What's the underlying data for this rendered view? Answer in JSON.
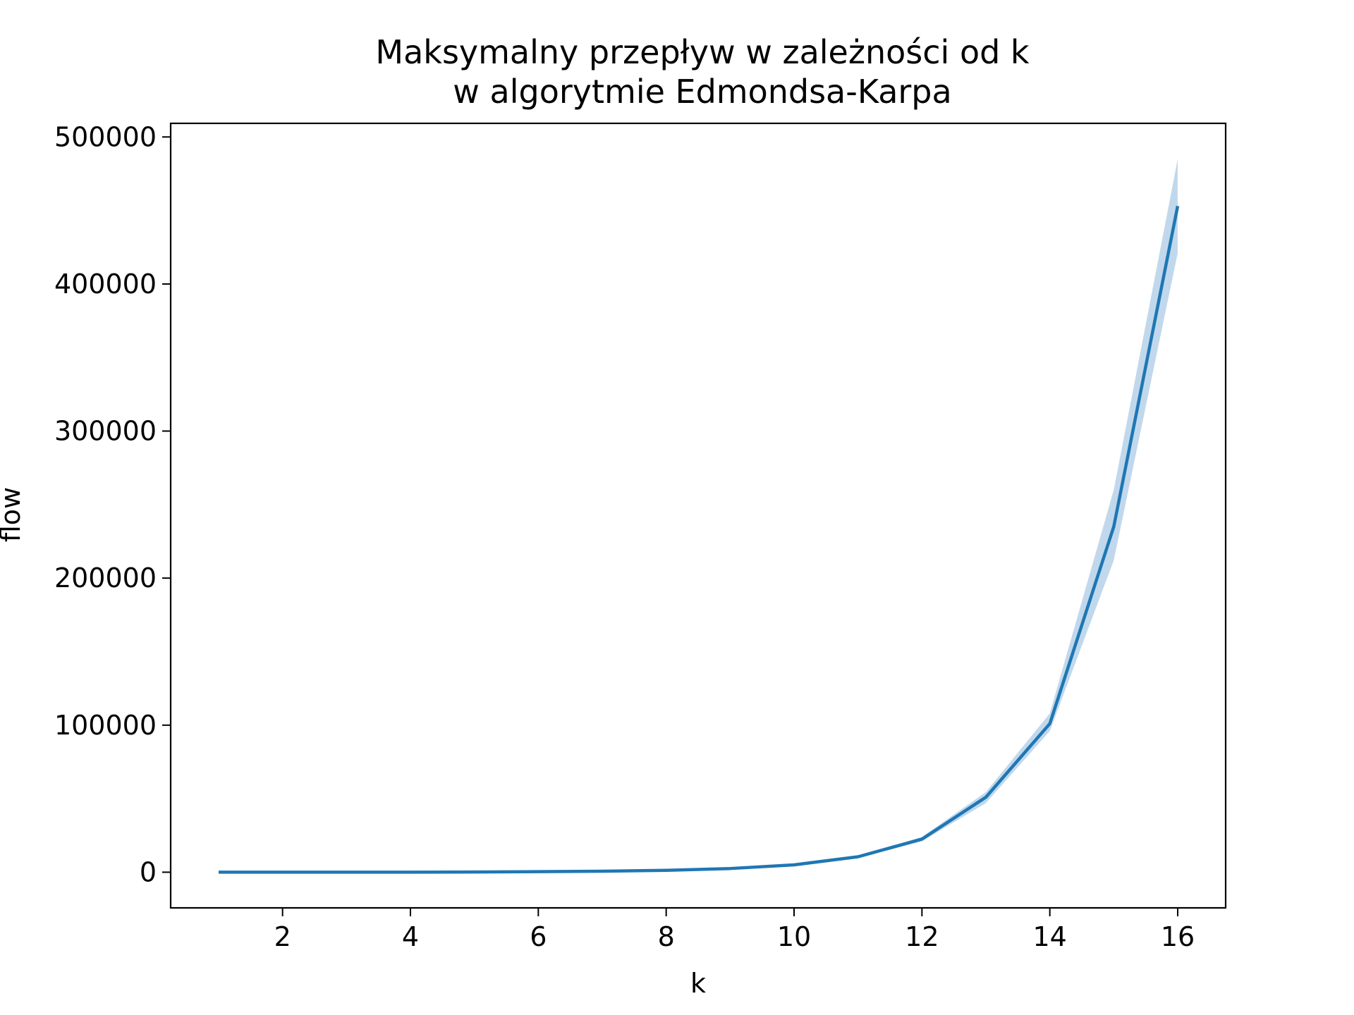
{
  "chart_data": {
    "type": "line",
    "title_lines": [
      "Maksymalny przepływ w zależności od k",
      "w algorytmie Edmondsa-Karpa"
    ],
    "xlabel": "k",
    "ylabel": "flow",
    "x": [
      1,
      2,
      3,
      4,
      5,
      6,
      7,
      8,
      9,
      10,
      11,
      12,
      13,
      14,
      15,
      16
    ],
    "series": [
      {
        "values": [
          1,
          3,
          10,
          35,
          120,
          350,
          700,
          1300,
          2500,
          5000,
          10500,
          22500,
          51000,
          101000,
          235000,
          453000
        ],
        "ci_lower": [
          0,
          2,
          8,
          30,
          100,
          300,
          600,
          1150,
          2250,
          4500,
          9700,
          21000,
          47000,
          96000,
          212000,
          421000
        ],
        "ci_upper": [
          2,
          4,
          12,
          40,
          140,
          400,
          800,
          1450,
          2750,
          5500,
          11300,
          24000,
          54500,
          108000,
          260000,
          485000
        ],
        "color": "#1f77b4",
        "band_color": "#a6c8e4"
      }
    ],
    "xlim": [
      0.25,
      16.75
    ],
    "ylim": [
      -24250,
      509250
    ],
    "xticks": [
      2,
      4,
      6,
      8,
      10,
      12,
      14,
      16
    ],
    "xtick_labels": [
      "2",
      "4",
      "6",
      "8",
      "10",
      "12",
      "14",
      "16"
    ],
    "yticks": [
      0,
      100000,
      200000,
      300000,
      400000,
      500000
    ],
    "ytick_labels": [
      "0",
      "100000",
      "200000",
      "300000",
      "400000",
      "500000"
    ],
    "grid": false,
    "legend": "none"
  }
}
